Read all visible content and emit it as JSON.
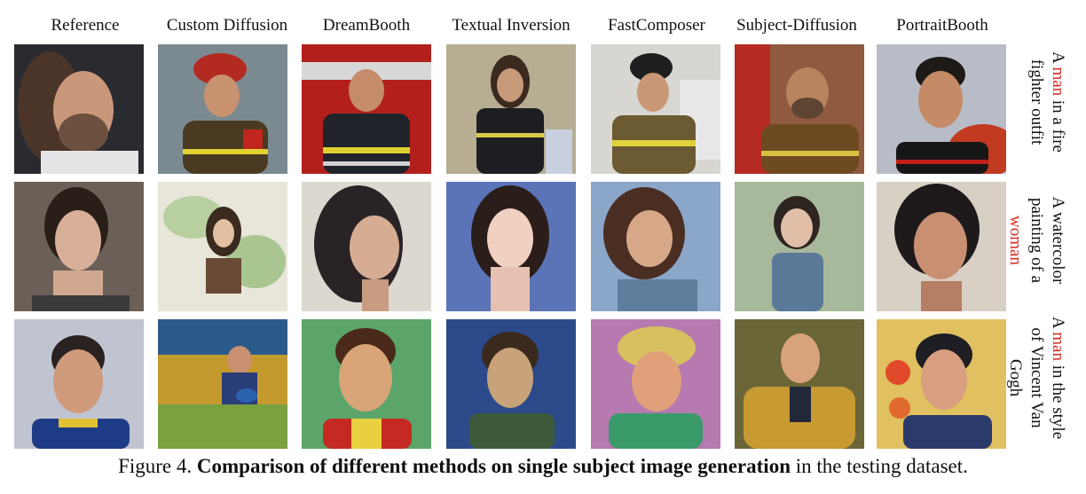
{
  "columns": [
    "Reference",
    "Custom Diffusion",
    "DreamBooth",
    "Textual Inversion",
    "FastComposer",
    "Subject-Diffusion",
    "PortraitBooth"
  ],
  "rows": [
    {
      "prompt": {
        "pre": "A ",
        "highlight": "man",
        "post": " in a fire fighter outfit"
      },
      "images": [
        "reference portrait of a man with long hair",
        "man in firefighter outfit",
        "man in firefighter outfit",
        "man in firefighter outfit",
        "man in firefighter outfit",
        "man in firefighter outfit",
        "man in firefighter outfit"
      ]
    },
    {
      "prompt": {
        "pre": "A watercolor painting of a ",
        "highlight": "woman",
        "post": ""
      },
      "images": [
        "reference portrait of a woman",
        "watercolor painting of a woman",
        "watercolor painting of a woman",
        "watercolor painting of a woman",
        "watercolor painting of a woman",
        "watercolor painting of a woman",
        "watercolor painting of a woman"
      ]
    },
    {
      "prompt": {
        "pre": "A ",
        "highlight": "man",
        "post": " in the style of Vincent Van Gogh"
      },
      "images": [
        "reference portrait of a man",
        "man in Van Gogh style",
        "man in Van Gogh style",
        "man in Van Gogh style",
        "man in Van Gogh style",
        "man in Van Gogh style",
        "man in Van Gogh style"
      ]
    }
  ],
  "caption": {
    "prefix": "Figure 4. ",
    "bold": "Comparison of different methods on single subject image generation",
    "suffix": " in the testing dataset."
  },
  "colors": {
    "highlight": "#d62a1e",
    "text": "#111111"
  }
}
